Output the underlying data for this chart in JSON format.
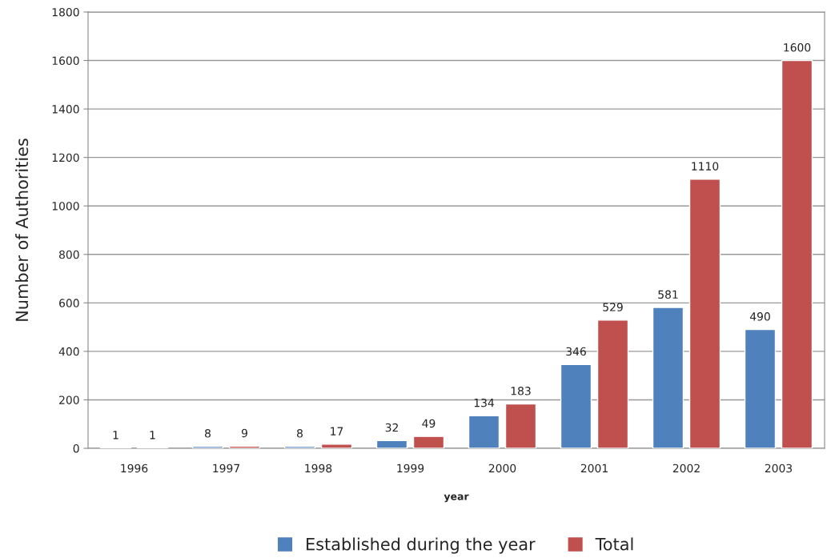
{
  "chart_data": {
    "type": "bar",
    "xlabel": "year",
    "ylabel": "Number of Authorities",
    "categories": [
      "1996",
      "1997",
      "1998",
      "1999",
      "2000",
      "2001",
      "2002",
      "2003"
    ],
    "series": [
      {
        "name": "Established during the year",
        "color": "#4f81bd",
        "values": [
          1,
          8,
          8,
          32,
          134,
          346,
          581,
          490
        ]
      },
      {
        "name": "Total",
        "color": "#c0504d",
        "values": [
          1,
          9,
          17,
          49,
          183,
          529,
          1110,
          1600
        ]
      }
    ],
    "ylim": [
      0,
      1800
    ],
    "yticks": [
      0,
      200,
      400,
      600,
      800,
      1000,
      1200,
      1400,
      1600,
      1800
    ],
    "grid": "y",
    "legend": "bottom",
    "data_labels": true
  }
}
